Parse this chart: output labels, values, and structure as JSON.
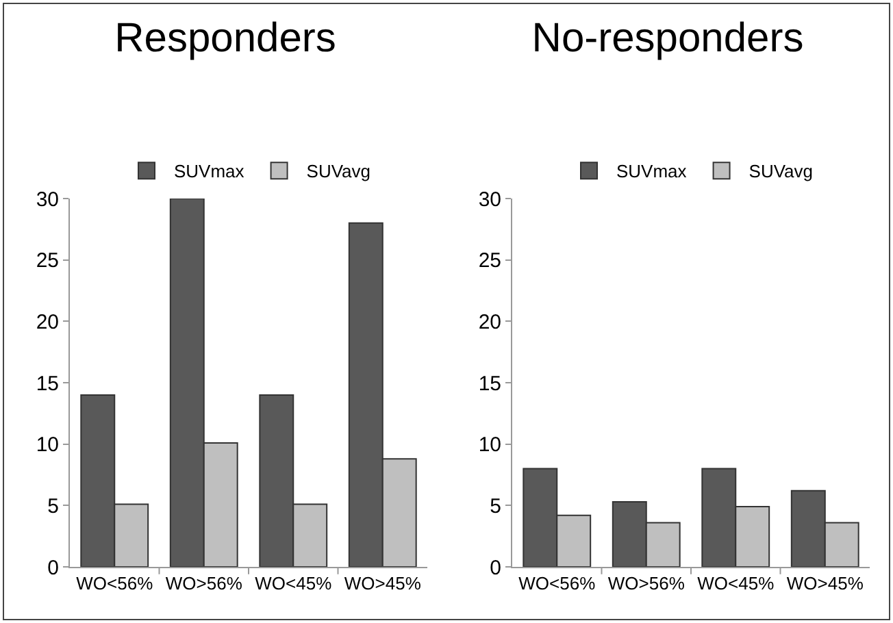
{
  "chart_data": [
    {
      "type": "bar",
      "title": "Responders",
      "categories": [
        "WO<56%",
        "WO>56%",
        "WO<45%",
        "WO>45%"
      ],
      "series": [
        {
          "name": "SUVmax",
          "color": "#595959",
          "values": [
            14,
            30,
            14,
            28
          ]
        },
        {
          "name": "SUVavg",
          "color": "#bfbfbf",
          "values": [
            5.1,
            10.1,
            5.1,
            8.8
          ]
        }
      ],
      "ylim": [
        0,
        30
      ],
      "yticks": [
        0,
        5,
        10,
        15,
        20,
        25,
        30
      ],
      "grid": false,
      "legend": "top"
    },
    {
      "type": "bar",
      "title": "No-responders",
      "categories": [
        "WO<56%",
        "WO>56%",
        "WO<45%",
        "WO>45%"
      ],
      "series": [
        {
          "name": "SUVmax",
          "color": "#595959",
          "values": [
            8,
            5.3,
            8,
            6.2
          ]
        },
        {
          "name": "SUVavg",
          "color": "#bfbfbf",
          "values": [
            4.2,
            3.6,
            4.9,
            3.6
          ]
        }
      ],
      "ylim": [
        0,
        30
      ],
      "yticks": [
        0,
        5,
        10,
        15,
        20,
        25,
        30
      ],
      "grid": false,
      "legend": "top"
    }
  ]
}
